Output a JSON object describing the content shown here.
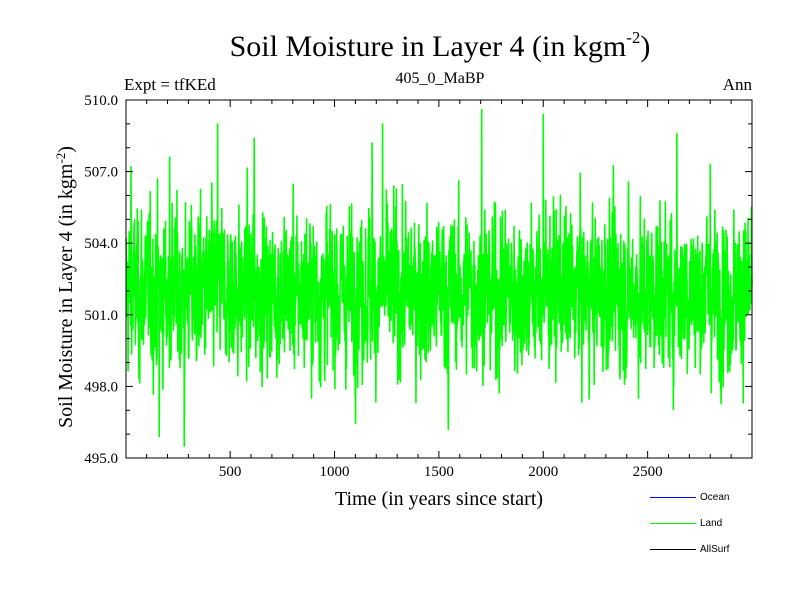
{
  "header": {
    "title": "Soil Moisture in Layer 4 (in kgm",
    "title_exponent": "-2",
    "title_close": ")",
    "subtitle": "405_0_MaBP",
    "left_note": "Expt = tfKEd",
    "right_note": "Ann"
  },
  "chart_data": {
    "type": "line",
    "title": "Soil Moisture in Layer 4 (in kgm-2)",
    "xlabel": "Time (in years since start)",
    "ylabel": "Soil Moisture in Layer 4 (in kgm-2)",
    "xlim": [
      1,
      3000
    ],
    "ylim": [
      495,
      510
    ],
    "x_ticks": [
      500,
      1000,
      1500,
      2000,
      2500
    ],
    "y_ticks": [
      495.0,
      498.0,
      501.0,
      504.0,
      507.0,
      510.0
    ],
    "y_tick_labels": [
      "495.0",
      "498.0",
      "501.0",
      "504.0",
      "507.0",
      "510.0"
    ],
    "grid": false,
    "legend_position": "bottom-right",
    "series": [
      {
        "name": "Ocean",
        "color": "#0000ff",
        "values": []
      },
      {
        "name": "Land",
        "color": "#00ff00",
        "mean": 502.0,
        "approx_min": 495.5,
        "approx_max": 509.6,
        "x_step": 1,
        "notable_points": [
          [
            25,
            507.2
          ],
          [
            160,
            495.9
          ],
          [
            210,
            507.6
          ],
          [
            280,
            495.5
          ],
          [
            440,
            509.0
          ],
          [
            615,
            508.4
          ],
          [
            1180,
            508.2
          ],
          [
            1230,
            509.0
          ],
          [
            1545,
            496.2
          ],
          [
            1705,
            509.6
          ],
          [
            2000,
            509.4
          ],
          [
            2640,
            508.6
          ],
          [
            2800,
            507.3
          ]
        ]
      },
      {
        "name": "AllSurf",
        "color": "#000000",
        "values": []
      }
    ]
  },
  "legend": {
    "items": [
      {
        "label": "Ocean",
        "color": "#0000ff"
      },
      {
        "label": "Land",
        "color": "#00ff00"
      },
      {
        "label": "AllSurf",
        "color": "#000000"
      }
    ]
  }
}
